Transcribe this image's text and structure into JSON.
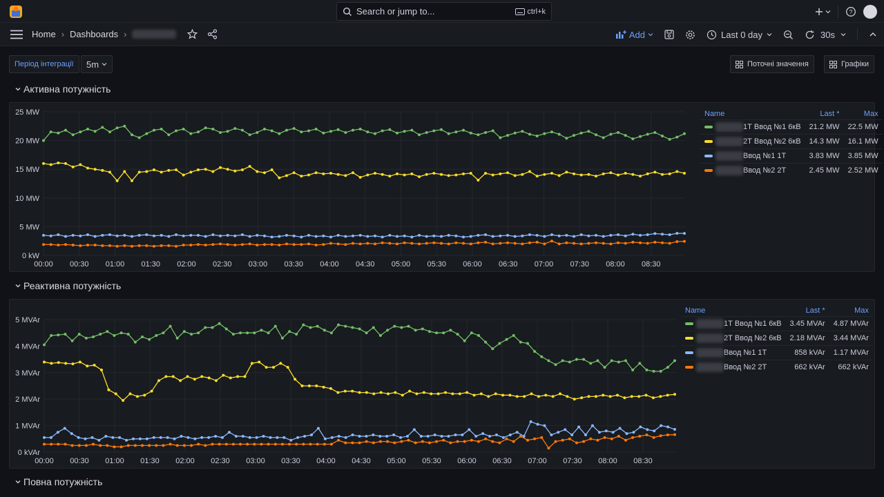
{
  "search": {
    "placeholder": "Search or jump to...",
    "shortcut": "ctrl+k"
  },
  "breadcrumb": {
    "home": "Home",
    "dashboards": "Dashboards"
  },
  "toolbar": {
    "add": "Add",
    "time_range": "Last 0 day",
    "refresh": "30s"
  },
  "variables": {
    "period_label": "Період інтеграції",
    "period_value": "5m"
  },
  "buttons": {
    "current_values": "Поточні значення",
    "graphs": "Графіки"
  },
  "rows": {
    "active": "Активна потужність",
    "reactive": "Реактивна потужність",
    "full": "Повна потужність"
  },
  "colors": {
    "green": "#73bf69",
    "yellow": "#fade2a",
    "blue": "#8ab8ff",
    "orange": "#ff780a",
    "accent": "#6e9fff"
  },
  "legend_headers": {
    "name": "Name",
    "last": "Last *",
    "max": "Max"
  },
  "chart_data": [
    {
      "type": "line",
      "x_ticks": [
        "00:00",
        "00:30",
        "01:00",
        "01:30",
        "02:00",
        "02:30",
        "03:00",
        "03:30",
        "04:00",
        "04:30",
        "05:00",
        "05:30",
        "06:00",
        "06:30",
        "07:00",
        "07:30",
        "08:00",
        "08:30"
      ],
      "y_ticks": [
        "0 kW",
        "5 MW",
        "10 MW",
        "15 MW",
        "20 MW",
        "25 MW"
      ],
      "ylim": [
        0,
        25
      ],
      "grid": true,
      "legend_placement": "right",
      "series": [
        {
          "name": "1Т Ввод №1 6кВ",
          "color": "#73bf69",
          "last": "21.2 MW",
          "max": "22.5 MW",
          "values": [
            20,
            21.5,
            21.3,
            21.8,
            21,
            21.5,
            22,
            21.6,
            22.3,
            21.5,
            22.2,
            22.5,
            21,
            20.5,
            21.2,
            21.8,
            22,
            21,
            21.7,
            22,
            21.2,
            21.5,
            22.2,
            22,
            21.4,
            21.6,
            22.1,
            21.8,
            21,
            21.4,
            22,
            21.7,
            21.2,
            21.8,
            22.1,
            21.5,
            21.7,
            22,
            21.3,
            21.6,
            21.9,
            21.4,
            21.8,
            22,
            21.5,
            21.2,
            21.7,
            21.9,
            21.3,
            21.6,
            21.8,
            21,
            21.4,
            21.7,
            21.9,
            21.2,
            21.5,
            21.8,
            21.3,
            21,
            21.4,
            21.7,
            20.5,
            20.9,
            21.3,
            21.6,
            21.1,
            20.8,
            21.2,
            21.5,
            21.1,
            20.4,
            20.9,
            21.3,
            21.6,
            21,
            20.5,
            21.1,
            21.4,
            20.9,
            20.3,
            20.7,
            21.1,
            21.4,
            20.8,
            20.2,
            20.6,
            21.2
          ]
        },
        {
          "name": "2Т Ввод №2 6кВ",
          "color": "#fade2a",
          "last": "14.3 MW",
          "max": "16.1 MW",
          "values": [
            16,
            15.8,
            16.1,
            16,
            15.4,
            15.8,
            15.2,
            15,
            14.8,
            14.5,
            13,
            14.6,
            13,
            14.5,
            14.6,
            14.9,
            14.5,
            14.8,
            14.9,
            14,
            14.5,
            14.9,
            15,
            14.6,
            15.3,
            15,
            14.7,
            14.9,
            15.5,
            14.6,
            14.4,
            14.9,
            13.5,
            13.9,
            14.4,
            13.8,
            14,
            14.4,
            14.2,
            14.3,
            14.1,
            13.9,
            14.4,
            13.6,
            14,
            14.3,
            14.1,
            13.8,
            14.2,
            14,
            14.2,
            13.7,
            14.1,
            14.3,
            14.1,
            13.9,
            14,
            14.2,
            14.3,
            13.1,
            14.3,
            14,
            14.2,
            14.4,
            13.9,
            14.1,
            14.6,
            13.8,
            14.1,
            14.3,
            13.9,
            14.5,
            14.2,
            14,
            14.1,
            13.8,
            14.2,
            14.4,
            14,
            14.3,
            14.1,
            13.8,
            14.2,
            14.5,
            14.1,
            14.2,
            14.6,
            14.3
          ]
        },
        {
          "name": "Ввод №1 1Т",
          "color": "#8ab8ff",
          "last": "3.83 MW",
          "max": "3.85 MW",
          "values": [
            3.5,
            3.4,
            3.6,
            3.3,
            3.5,
            3.4,
            3.6,
            3.3,
            3.5,
            3.6,
            3.4,
            3.5,
            3.3,
            3.5,
            3.6,
            3.4,
            3.5,
            3.3,
            3.6,
            3.4,
            3.5,
            3.5,
            3.3,
            3.6,
            3.4,
            3.5,
            3.4,
            3.6,
            3.3,
            3.5,
            3.4,
            3.2,
            3.3,
            3.5,
            3.4,
            3.2,
            3.5,
            3.3,
            3.4,
            3.2,
            3.5,
            3.3,
            3.4,
            3.5,
            3.3,
            3.4,
            3.2,
            3.5,
            3.3,
            3.4,
            3.2,
            3.5,
            3.3,
            3.4,
            3.3,
            3.5,
            3.4,
            3.2,
            3.3,
            3.5,
            3.6,
            3.3,
            3.4,
            3.5,
            3.3,
            3.4,
            3.6,
            3.5,
            3.3,
            3.6,
            3.4,
            3.5,
            3.3,
            3.6,
            3.4,
            3.5,
            3.3,
            3.5,
            3.6,
            3.4,
            3.7,
            3.5,
            3.6,
            3.8,
            3.7,
            3.6,
            3.85,
            3.83
          ]
        },
        {
          "name": "Ввод №2 2Т",
          "color": "#ff780a",
          "last": "2.45 MW",
          "max": "2.52 MW",
          "values": [
            1.9,
            1.9,
            1.8,
            1.9,
            1.8,
            1.7,
            1.8,
            1.8,
            1.7,
            1.7,
            1.6,
            1.7,
            1.6,
            1.7,
            1.7,
            1.6,
            1.7,
            1.7,
            1.6,
            1.8,
            1.8,
            1.9,
            1.8,
            1.9,
            2,
            1.9,
            1.8,
            1.9,
            2,
            1.8,
            1.9,
            1.9,
            1.8,
            2,
            1.9,
            1.9,
            2,
            1.8,
            1.9,
            2.1,
            2,
            1.9,
            2.1,
            2,
            2.1,
            2,
            2.2,
            2.1,
            2,
            2.2,
            2.1,
            2,
            2.1,
            2.2,
            2.1,
            2,
            2.2,
            2.1,
            2,
            2.2,
            2.3,
            2,
            2.1,
            2.2,
            2.1,
            2,
            2.2,
            2.3,
            2,
            2.5,
            2,
            2.2,
            2.1,
            2,
            2.1,
            2.2,
            2.1,
            2,
            2.2,
            2.1,
            2.3,
            2.2,
            2.1,
            2.3,
            2.2,
            2.1,
            2.4,
            2.45
          ]
        }
      ]
    },
    {
      "type": "line",
      "x_ticks": [
        "00:00",
        "00:30",
        "01:00",
        "01:30",
        "02:00",
        "02:30",
        "03:00",
        "03:30",
        "04:00",
        "04:30",
        "05:00",
        "05:30",
        "06:00",
        "06:30",
        "07:00",
        "07:30",
        "08:00",
        "08:30"
      ],
      "y_ticks": [
        "0 kVAr",
        "1 MVAr",
        "2 MVAr",
        "3 MVAr",
        "4 MVAr",
        "5 MVAr"
      ],
      "ylim": [
        0,
        5
      ],
      "grid": true,
      "legend_placement": "right",
      "series": [
        {
          "name": "1Т Ввод №1 6кВ",
          "color": "#73bf69",
          "last": "3.45 MVAr",
          "max": "4.87 MVAr",
          "values": [
            4.05,
            4.4,
            4.42,
            4.45,
            4.2,
            4.45,
            4.3,
            4.35,
            4.45,
            4.55,
            4.4,
            4.5,
            4.45,
            4.15,
            4.35,
            4.25,
            4.4,
            4.5,
            4.75,
            4.3,
            4.55,
            4.45,
            4.5,
            4.7,
            4.7,
            4.85,
            4.65,
            4.45,
            4.5,
            4.5,
            4.5,
            4.6,
            4.5,
            4.75,
            4.3,
            4.55,
            4.45,
            4.8,
            4.7,
            4.75,
            4.6,
            4.5,
            4.8,
            4.75,
            4.7,
            4.65,
            4.5,
            4.7,
            4.4,
            4.6,
            4.75,
            4.7,
            4.75,
            4.6,
            4.65,
            4.55,
            4.5,
            4.5,
            4.6,
            4.45,
            4.2,
            4.5,
            4.4,
            4.15,
            3.9,
            4.1,
            4.25,
            4.4,
            4.15,
            4.1,
            3.8,
            3.6,
            3.45,
            3.3,
            3.45,
            3.4,
            3.5,
            3.5,
            3.35,
            3.45,
            3.2,
            3.45,
            3.4,
            3.45,
            3.1,
            3.35,
            3.1,
            3.05,
            3.05,
            3.2,
            3.45
          ]
        },
        {
          "name": "2Т Ввод №2 6кВ",
          "color": "#fade2a",
          "last": "2.18 MVAr",
          "max": "3.44 MVAr",
          "values": [
            3.4,
            3.35,
            3.38,
            3.35,
            3.33,
            3.4,
            3.25,
            3.28,
            3.1,
            2.35,
            2.2,
            1.95,
            2.2,
            2.1,
            2.15,
            2.3,
            2.7,
            2.85,
            2.85,
            2.7,
            2.85,
            2.75,
            2.85,
            2.8,
            2.7,
            2.9,
            2.8,
            2.85,
            2.85,
            3.35,
            3.4,
            3.2,
            3.2,
            3.35,
            3.2,
            2.75,
            2.5,
            2.5,
            2.5,
            2.45,
            2.4,
            2.25,
            2.3,
            2.3,
            2.25,
            2.25,
            2.2,
            2.25,
            2.2,
            2.25,
            2.15,
            2.3,
            2.2,
            2.25,
            2.2,
            2.2,
            2.25,
            2.2,
            2.2,
            2.25,
            2.15,
            2.2,
            2.1,
            2.2,
            2.15,
            2.15,
            2.1,
            2.1,
            2.2,
            2.1,
            2.15,
            2.1,
            2.2,
            2.1,
            2,
            2.05,
            2.1,
            2.1,
            2.15,
            2.1,
            2.15,
            2.05,
            2.1,
            2.1,
            2.15,
            2.05,
            2.1,
            2.15,
            2.18
          ]
        },
        {
          "name": "Ввод №1 1Т",
          "color": "#8ab8ff",
          "last": "858 kVAr",
          "max": "1.17 MVAr",
          "values": [
            0.55,
            0.55,
            0.75,
            0.9,
            0.7,
            0.55,
            0.5,
            0.55,
            0.45,
            0.6,
            0.55,
            0.55,
            0.45,
            0.5,
            0.5,
            0.5,
            0.55,
            0.55,
            0.55,
            0.5,
            0.6,
            0.55,
            0.5,
            0.55,
            0.55,
            0.6,
            0.55,
            0.75,
            0.6,
            0.6,
            0.55,
            0.55,
            0.6,
            0.55,
            0.55,
            0.55,
            0.45,
            0.55,
            0.6,
            0.65,
            0.9,
            0.5,
            0.55,
            0.6,
            0.55,
            0.65,
            0.6,
            0.6,
            0.65,
            0.6,
            0.6,
            0.65,
            0.55,
            0.6,
            0.85,
            0.6,
            0.6,
            0.65,
            0.6,
            0.6,
            0.65,
            0.65,
            0.85,
            0.6,
            0.7,
            0.6,
            0.65,
            0.55,
            0.65,
            0.75,
            0.6,
            1.15,
            1.05,
            1,
            0.65,
            0.75,
            0.85,
            0.65,
            0.95,
            0.65,
            1,
            0.75,
            0.8,
            0.75,
            0.9,
            0.7,
            0.75,
            0.95,
            0.85,
            0.8,
            1.0,
            0.95,
            0.858
          ]
        },
        {
          "name": "Ввод №2 2Т",
          "color": "#ff780a",
          "last": "662 kVAr",
          "max": "662 kVAr",
          "values": [
            0.3,
            0.3,
            0.3,
            0.3,
            0.25,
            0.25,
            0.25,
            0.3,
            0.25,
            0.25,
            0.2,
            0.2,
            0.25,
            0.25,
            0.25,
            0.25,
            0.25,
            0.25,
            0.3,
            0.25,
            0.25,
            0.25,
            0.3,
            0.25,
            0.3,
            0.3,
            0.3,
            0.3,
            0.3,
            0.3,
            0.3,
            0.3,
            0.3,
            0.3,
            0.3,
            0.3,
            0.3,
            0.3,
            0.3,
            0.3,
            0.3,
            0.3,
            0.45,
            0.35,
            0.35,
            0.35,
            0.4,
            0.35,
            0.4,
            0.4,
            0.35,
            0.4,
            0.45,
            0.35,
            0.4,
            0.35,
            0.4,
            0.45,
            0.35,
            0.4,
            0.4,
            0.45,
            0.4,
            0.5,
            0.4,
            0.35,
            0.5,
            0.4,
            0.6,
            0.45,
            0.5,
            0.55,
            0.15,
            0.4,
            0.45,
            0.5,
            0.35,
            0.4,
            0.5,
            0.45,
            0.55,
            0.5,
            0.6,
            0.45,
            0.55,
            0.6,
            0.65,
            0.55,
            0.62,
            0.65,
            0.662
          ]
        }
      ]
    }
  ]
}
